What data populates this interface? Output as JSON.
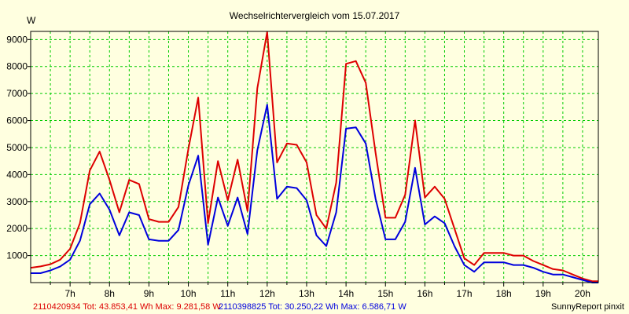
{
  "chart_data": {
    "type": "line",
    "title": "Wechselrichtervergleich vom 15.07.2017",
    "ylabel": "W",
    "xlabel": "",
    "credit": "SunnyReport pinxit",
    "ylim": [
      0,
      9300
    ],
    "yticks": [
      1000,
      2000,
      3000,
      4000,
      5000,
      6000,
      7000,
      8000,
      9000
    ],
    "xlim": [
      6.0,
      20.4
    ],
    "xticks": [
      {
        "value": 7,
        "label": "7h"
      },
      {
        "value": 8,
        "label": "8h"
      },
      {
        "value": 9,
        "label": "9h"
      },
      {
        "value": 10,
        "label": "10h"
      },
      {
        "value": 11,
        "label": "11h"
      },
      {
        "value": 12,
        "label": "12h"
      },
      {
        "value": 13,
        "label": "13h"
      },
      {
        "value": 14,
        "label": "14h"
      },
      {
        "value": 15,
        "label": "15h"
      },
      {
        "value": 16,
        "label": "16h"
      },
      {
        "value": 17,
        "label": "17h"
      },
      {
        "value": 18,
        "label": "18h"
      },
      {
        "value": 19,
        "label": "19h"
      },
      {
        "value": 20,
        "label": "20h"
      }
    ],
    "grid": true,
    "colors": {
      "background": "#ffffe0",
      "grid": "#00cc00",
      "axis": "#000000"
    },
    "x": [
      6.0,
      6.25,
      6.5,
      6.75,
      7.0,
      7.25,
      7.5,
      7.75,
      8.0,
      8.25,
      8.5,
      8.75,
      9.0,
      9.25,
      9.5,
      9.75,
      10.0,
      10.25,
      10.5,
      10.75,
      11.0,
      11.25,
      11.5,
      11.75,
      12.0,
      12.25,
      12.5,
      12.75,
      13.0,
      13.25,
      13.5,
      13.75,
      14.0,
      14.25,
      14.5,
      14.75,
      15.0,
      15.25,
      15.5,
      15.75,
      16.0,
      16.25,
      16.5,
      16.75,
      17.0,
      17.25,
      17.5,
      17.75,
      18.0,
      18.25,
      18.5,
      18.75,
      19.0,
      19.25,
      19.5,
      19.75,
      20.0,
      20.25,
      20.4
    ],
    "series": [
      {
        "name": "2110420934",
        "color": "#dd0000",
        "legend": "2110420934 Tot: 43.853,41 Wh Max: 9.281,58 W",
        "values": [
          550,
          600,
          680,
          850,
          1250,
          2200,
          4150,
          4850,
          3800,
          2600,
          3800,
          3650,
          2350,
          2250,
          2250,
          2800,
          4950,
          6850,
          2200,
          4500,
          3050,
          4550,
          2650,
          7200,
          9280,
          4450,
          5150,
          5100,
          4450,
          2500,
          2000,
          3700,
          8100,
          8200,
          7400,
          4800,
          2400,
          2400,
          3250,
          6000,
          3150,
          3550,
          3100,
          2000,
          900,
          650,
          1100,
          1100,
          1100,
          1000,
          1000,
          800,
          650,
          500,
          450,
          300,
          150,
          50,
          50
        ]
      },
      {
        "name": "2110398825",
        "color": "#0000dd",
        "legend": "2110398825 Tot: 30.250,22 Wh Max: 6.586,71 W",
        "values": [
          350,
          350,
          450,
          600,
          850,
          1550,
          2900,
          3300,
          2700,
          1750,
          2600,
          2500,
          1600,
          1550,
          1550,
          1950,
          3600,
          4700,
          1400,
          3150,
          2100,
          3150,
          1800,
          4900,
          6586,
          3100,
          3550,
          3500,
          3050,
          1750,
          1350,
          2600,
          5700,
          5750,
          5150,
          3100,
          1600,
          1600,
          2250,
          4250,
          2150,
          2450,
          2200,
          1350,
          650,
          400,
          750,
          750,
          750,
          650,
          650,
          550,
          400,
          300,
          300,
          200,
          100,
          0,
          0
        ]
      }
    ]
  }
}
